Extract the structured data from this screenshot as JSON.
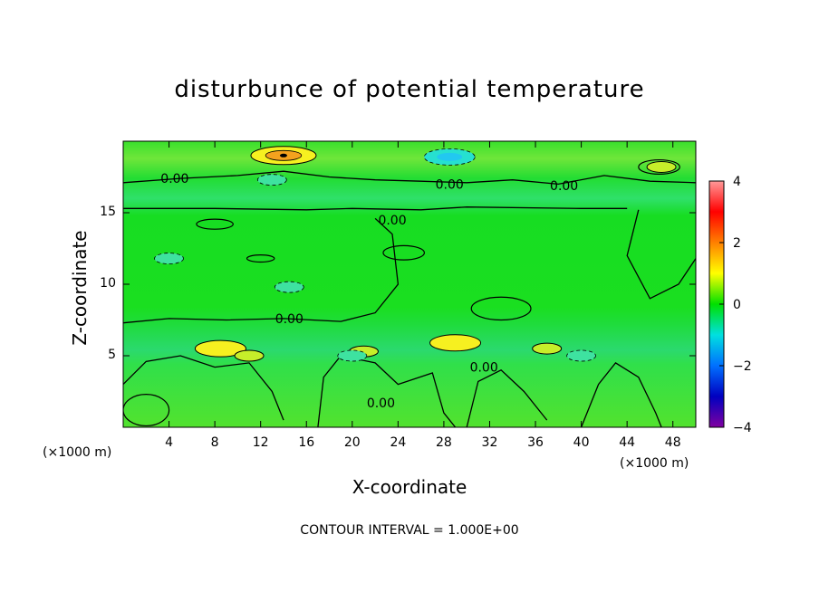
{
  "chart_data": {
    "type": "heatmap",
    "title": "disturbunce of potential temperature",
    "xlabel": "X-coordinate",
    "ylabel": "Z-coordinate",
    "x_unit": "(×1000 m)",
    "y_unit": "(×1000 m)",
    "xlim": [
      0,
      50
    ],
    "ylim": [
      0,
      20
    ],
    "x_ticks": [
      4,
      8,
      12,
      16,
      20,
      24,
      28,
      32,
      36,
      40,
      44,
      48
    ],
    "y_ticks": [
      5,
      10,
      15
    ],
    "contour_interval_text": "CONTOUR INTERVAL = 1.000E+00",
    "contour_labels": [
      {
        "text": "0.00",
        "x": 4.5,
        "z": 17.4
      },
      {
        "text": "0.00",
        "x": 28.5,
        "z": 17.0
      },
      {
        "text": "0.00",
        "x": 38.5,
        "z": 16.9
      },
      {
        "text": "0.00",
        "x": 23.5,
        "z": 14.5
      },
      {
        "text": "0.00",
        "x": 14.5,
        "z": 7.6
      },
      {
        "text": "0.00",
        "x": 31.5,
        "z": 4.2
      },
      {
        "text": "0.00",
        "x": 22.5,
        "z": 1.7
      }
    ],
    "colorbar": {
      "range": [
        -4,
        4
      ],
      "ticks": [
        4,
        2,
        0,
        -2,
        -4
      ],
      "colors": [
        "#ff9999",
        "#ff0000",
        "#ff8000",
        "#ffff00",
        "#00e000",
        "#00e0e0",
        "#0070ff",
        "#0000c0",
        "#8000a0"
      ]
    },
    "features": [
      {
        "type": "warm",
        "x": 14,
        "z": 19.0,
        "value": 2.3
      },
      {
        "type": "warm",
        "x": 47,
        "z": 18.2,
        "value": 0.9
      },
      {
        "type": "warm",
        "x": 8.5,
        "z": 5.5,
        "value": 1.0
      },
      {
        "type": "warm",
        "x": 11,
        "z": 5.0,
        "value": 0.8
      },
      {
        "type": "warm",
        "x": 21,
        "z": 5.3,
        "value": 0.8
      },
      {
        "type": "warm",
        "x": 29,
        "z": 5.9,
        "value": 1.1
      },
      {
        "type": "warm",
        "x": 37,
        "z": 5.5,
        "value": 0.6
      },
      {
        "type": "cool",
        "x": 28.5,
        "z": 18.9,
        "value": -1.2
      },
      {
        "type": "cool",
        "x": 13,
        "z": 17.3,
        "value": -0.8
      },
      {
        "type": "cool",
        "x": 20,
        "z": 5.0,
        "value": -0.4
      },
      {
        "type": "cool",
        "x": 40,
        "z": 5.0,
        "value": -0.4
      },
      {
        "type": "cool",
        "x": 4,
        "z": 11.8,
        "value": -0.4
      },
      {
        "type": "cool",
        "x": 14.5,
        "z": 9.8,
        "value": -0.4
      }
    ]
  }
}
